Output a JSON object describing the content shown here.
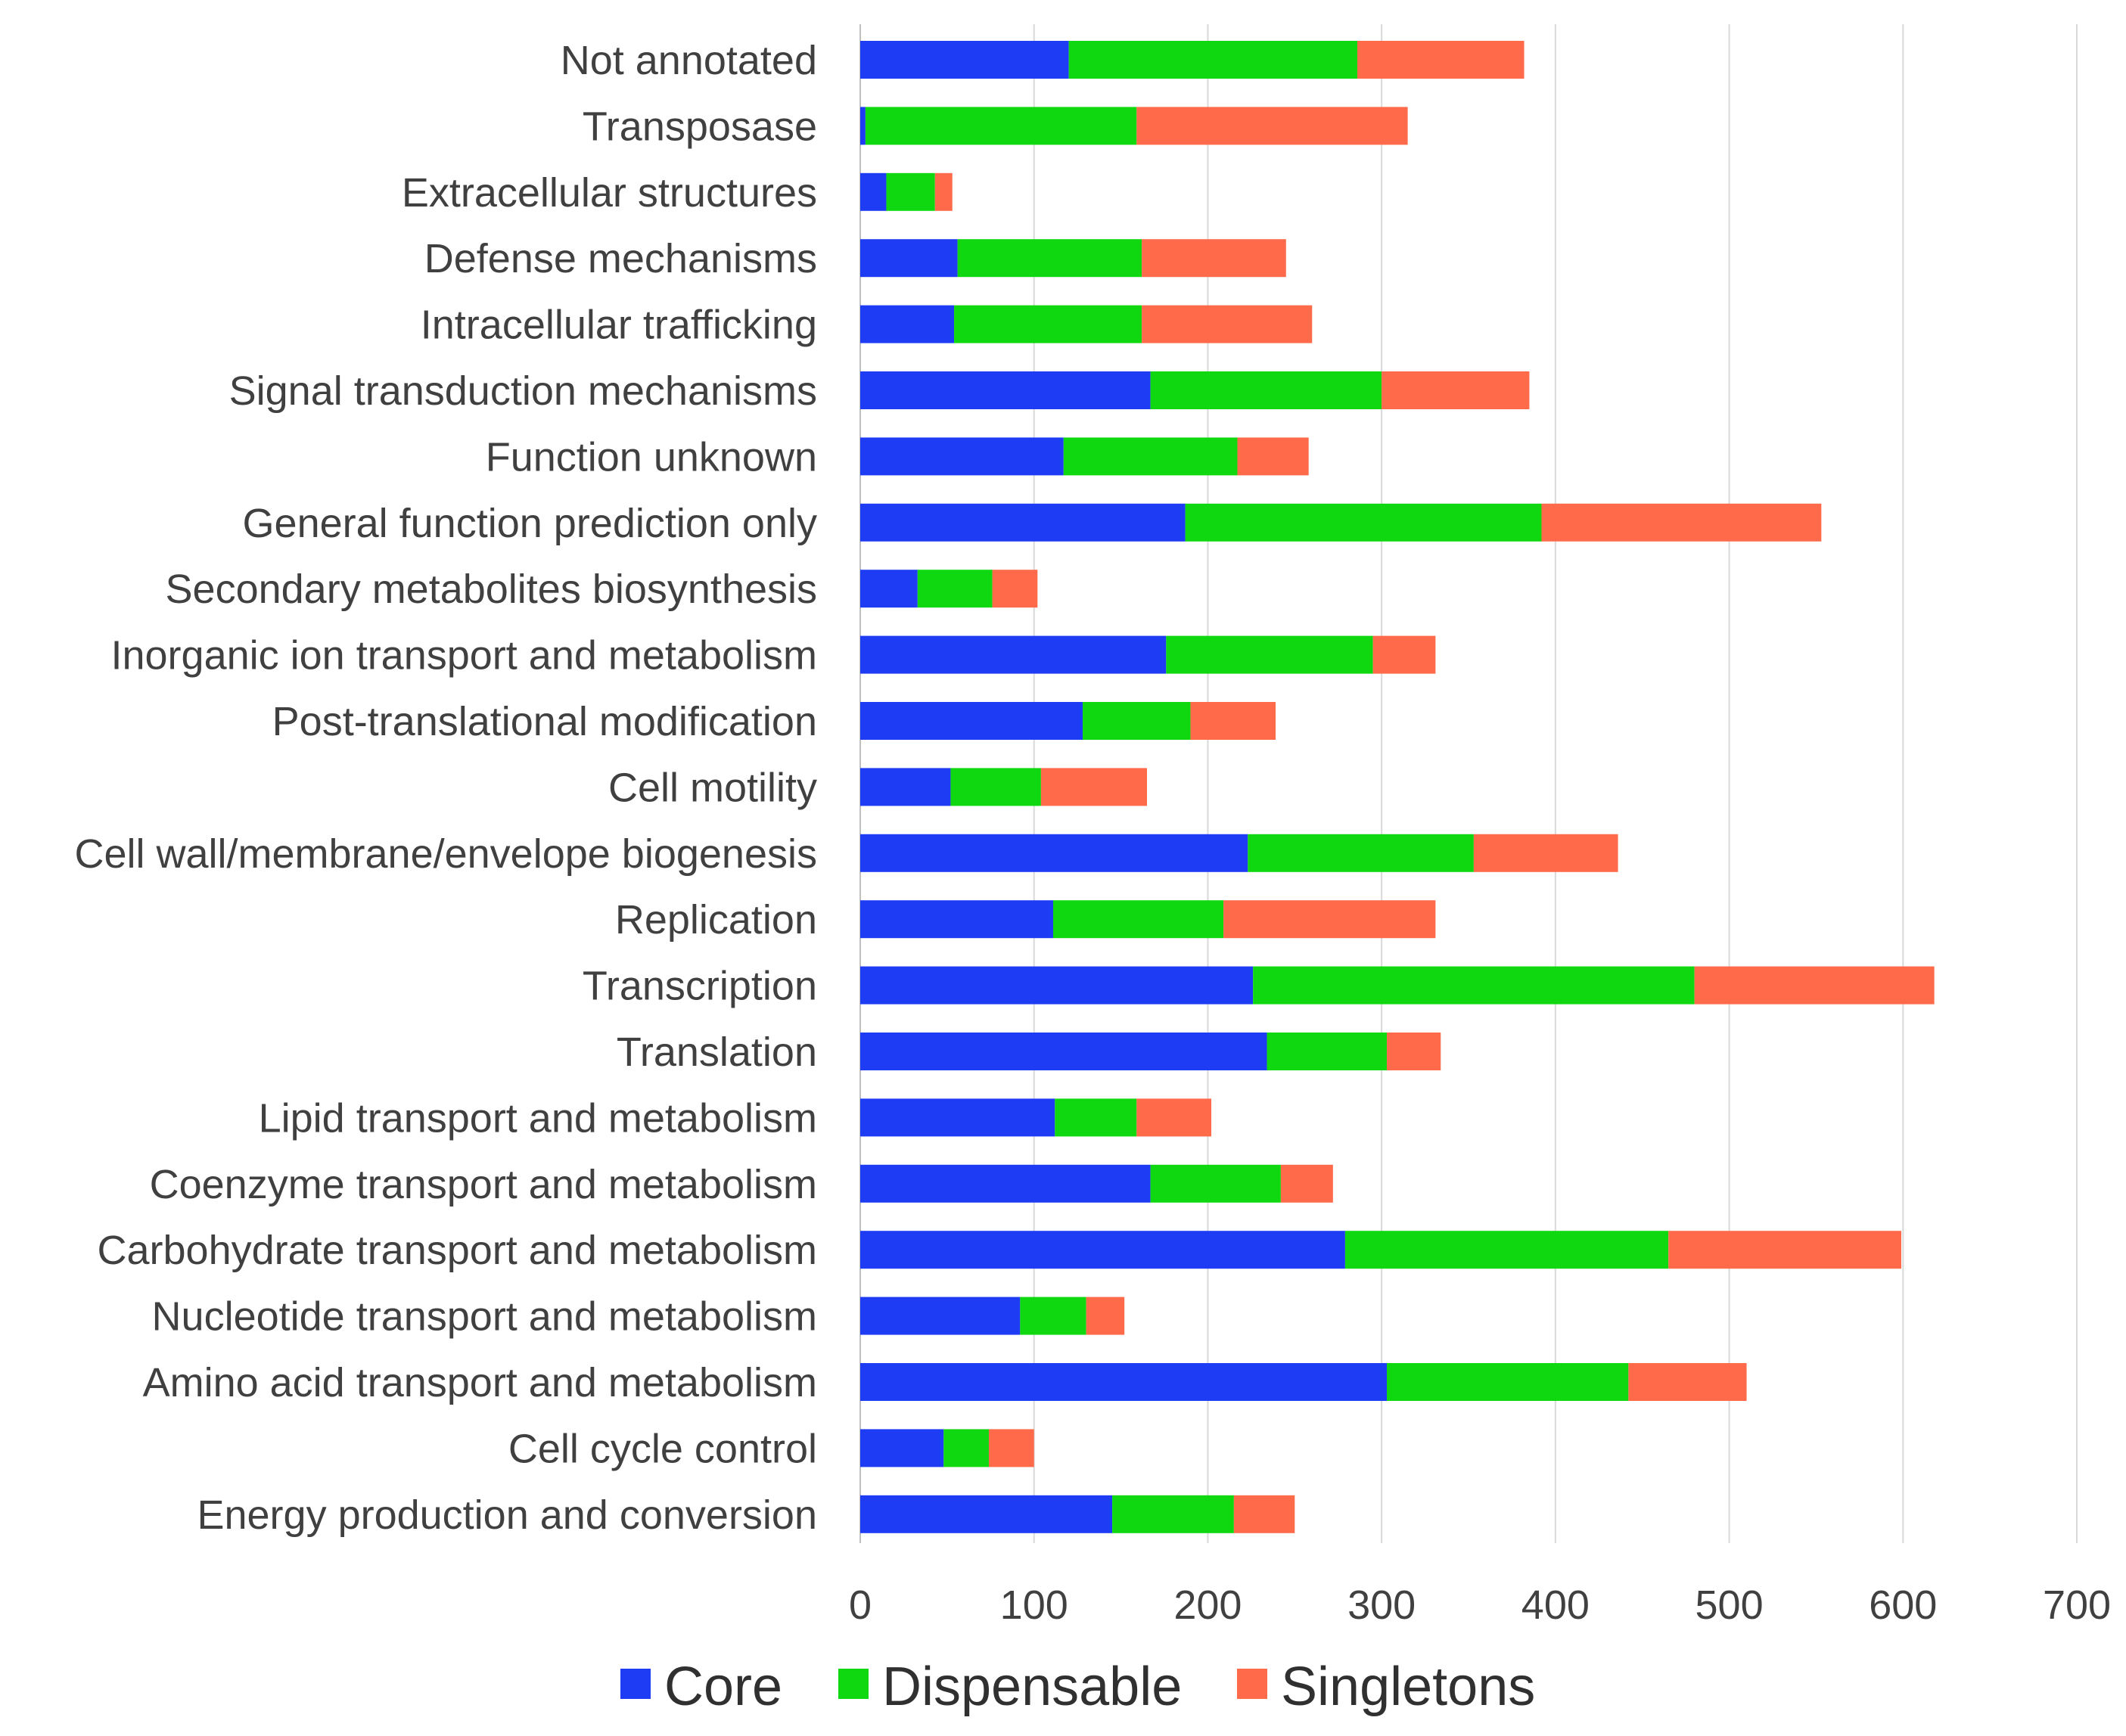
{
  "chart_data": {
    "type": "bar",
    "orientation": "horizontal",
    "stacked": true,
    "title": "",
    "xlabel": "",
    "ylabel": "",
    "xlim": [
      0,
      700
    ],
    "x_ticks": [
      0,
      100,
      200,
      300,
      400,
      500,
      600,
      700
    ],
    "grid": true,
    "legend_position": "bottom",
    "categories": [
      "Not annotated",
      "Transposase",
      "Extracellular structures",
      "Defense mechanisms",
      "Intracellular trafficking",
      "Signal transduction mechanisms",
      "Function unknown",
      "General function prediction only",
      "Secondary metabolites biosynthesis",
      "Inorganic ion transport and metabolism",
      "Post-translational modification",
      "Cell motility",
      "Cell wall/membrane/envelope biogenesis",
      "Replication",
      "Transcription",
      "Translation",
      "Lipid transport and metabolism",
      "Coenzyme transport and metabolism",
      "Carbohydrate transport and metabolism",
      "Nucleotide transport and metabolism",
      "Amino acid transport and metabolism",
      "Cell cycle control",
      "Energy production and conversion"
    ],
    "series": [
      {
        "name": "Core",
        "color": "#1f3cf5",
        "values": [
          120,
          3,
          15,
          56,
          54,
          167,
          117,
          187,
          33,
          176,
          128,
          52,
          223,
          111,
          226,
          234,
          112,
          167,
          279,
          92,
          303,
          48,
          145
        ]
      },
      {
        "name": "Dispensable",
        "color": "#10d810",
        "values": [
          166,
          156,
          28,
          106,
          108,
          133,
          100,
          205,
          43,
          119,
          62,
          52,
          130,
          98,
          254,
          69,
          47,
          75,
          186,
          38,
          139,
          26,
          70
        ]
      },
      {
        "name": "Singletons",
        "color": "#ff6a4a",
        "values": [
          96,
          156,
          10,
          83,
          98,
          85,
          41,
          161,
          26,
          36,
          49,
          61,
          83,
          122,
          138,
          31,
          43,
          30,
          134,
          22,
          68,
          26,
          35
        ]
      }
    ]
  }
}
